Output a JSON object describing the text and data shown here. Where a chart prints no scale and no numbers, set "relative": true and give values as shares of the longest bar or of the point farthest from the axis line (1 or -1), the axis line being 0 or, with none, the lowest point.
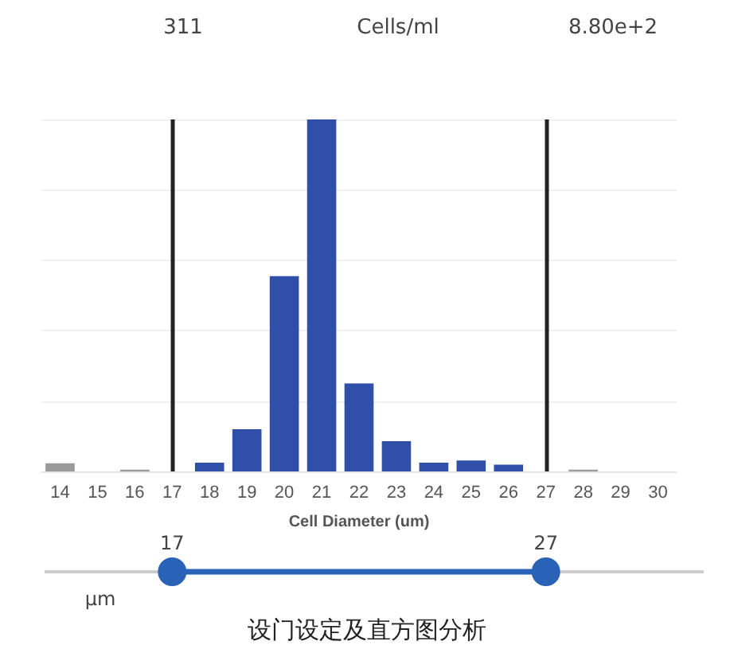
{
  "chart_data": {
    "type": "bar",
    "relative": true,
    "xlabel": "Cell Diameter (um)",
    "title": "设门设定及直方图分析",
    "x2label": "µm",
    "annotations": [
      "311",
      "Cells/ml",
      "8.80e+2",
      "17",
      "27"
    ],
    "categories": [
      "14",
      "15",
      "16",
      "17",
      "18",
      "19",
      "20",
      "21",
      "22",
      "23",
      "24",
      "25",
      "26",
      "27",
      "28",
      "29",
      "30"
    ],
    "values": [
      0.023,
      0,
      0.005,
      0,
      0.025,
      0.12,
      0.555,
      1,
      0.25,
      0.086,
      0.025,
      0.031,
      0.019,
      0,
      0.005,
      0,
      0
    ],
    "colors": [
      "#9a9a9a",
      "#9a9a9a",
      "#9a9a9a",
      "#9a9a9a",
      "#2f4fa8",
      "#2f4fa8",
      "#2f4fa8",
      "#2f4fa8",
      "#2f4fa8",
      "#2f4fa8",
      "#2f4fa8",
      "#2f4fa8",
      "#2f4fa8",
      "#9a9a9a",
      "#9a9a9a",
      "#9a9a9a",
      "#9a9a9a"
    ],
    "ref_lines": [
      {
        "axis": "x",
        "value": "17",
        "color": "#222222"
      },
      {
        "axis": "x",
        "value": "27",
        "color": "#222222"
      }
    ],
    "grid": "y"
  }
}
